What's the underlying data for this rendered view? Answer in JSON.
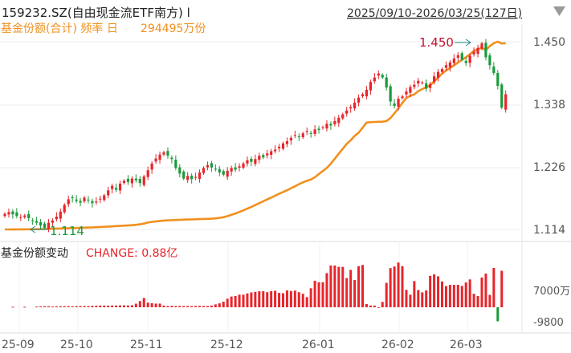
{
  "header": {
    "title": "159232.SZ(自由现金流ETF南方) l",
    "date_range": "2025/09/10-2026/03/25(127日)",
    "subtitle_label": "基金份额(合计) 频率 日",
    "subtitle_value": "294495万份",
    "dropdown_icon": "triangle-down-icon"
  },
  "lower_panel": {
    "label": "基金份额变动",
    "change_label": "CHANGE: 0.88亿",
    "tick_labels": [
      "7000万",
      "-9800"
    ]
  },
  "colors": {
    "up": "#e8252b",
    "down": "#1a9a3a",
    "line": "#f0901e",
    "title": "#222222",
    "subtitle": "#f0901e",
    "annotation_high": "#c8102e",
    "annotation_low": "#1a9a3a",
    "axis_text": "#555555",
    "grid": "#eeeeee"
  },
  "chart_data": [
    {
      "type": "candlestick",
      "title": "159232.SZ(自由现金流ETF南方)",
      "y_ticks": [
        "1.450",
        "1.338",
        "1.226",
        "1.114"
      ],
      "ylim": [
        1.114,
        1.45
      ],
      "x_ticks": [
        "25-09",
        "25-10",
        "25-11",
        "25-12",
        "26-01",
        "26-02",
        "26-03"
      ],
      "annotations": [
        {
          "label": "1.450",
          "kind": "high"
        },
        {
          "label": "1.114",
          "kind": "low"
        }
      ],
      "close": [
        1.142,
        1.145,
        1.141,
        1.138,
        1.136,
        1.139,
        1.134,
        1.13,
        1.126,
        1.121,
        1.117,
        1.126,
        1.13,
        1.137,
        1.146,
        1.158,
        1.168,
        1.17,
        1.165,
        1.162,
        1.171,
        1.166,
        1.161,
        1.164,
        1.169,
        1.175,
        1.184,
        1.192,
        1.185,
        1.196,
        1.201,
        1.199,
        1.205,
        1.202,
        1.197,
        1.209,
        1.22,
        1.232,
        1.241,
        1.248,
        1.252,
        1.246,
        1.24,
        1.224,
        1.214,
        1.205,
        1.21,
        1.204,
        1.208,
        1.216,
        1.224,
        1.229,
        1.225,
        1.222,
        1.216,
        1.212,
        1.219,
        1.224,
        1.221,
        1.227,
        1.232,
        1.238,
        1.235,
        1.24,
        1.246,
        1.243,
        1.25,
        1.254,
        1.257,
        1.262,
        1.268,
        1.272,
        1.278,
        1.283,
        1.279,
        1.286,
        1.29,
        1.286,
        1.293,
        1.292,
        1.297,
        1.303,
        1.3,
        1.308,
        1.314,
        1.32,
        1.327,
        1.333,
        1.341,
        1.35,
        1.356,
        1.364,
        1.378,
        1.386,
        1.393,
        1.386,
        1.368,
        1.343,
        1.335,
        1.348,
        1.352,
        1.361,
        1.369,
        1.373,
        1.38,
        1.377,
        1.366,
        1.374,
        1.388,
        1.396,
        1.401,
        1.408,
        1.413,
        1.42,
        1.426,
        1.418,
        1.412,
        1.425,
        1.432,
        1.439,
        1.447,
        1.422,
        1.408,
        1.394,
        1.371,
        1.332,
        1.356
      ],
      "share_line": {
        "name": "基金份额(合计)",
        "values_wanfen": [
          20600,
          20600,
          20700,
          20700,
          20700,
          20800,
          20800,
          20800,
          20900,
          21100,
          21300,
          21500,
          21600,
          21800,
          22000,
          22200,
          22400,
          22600,
          22800,
          23000,
          23200,
          23400,
          23600,
          23900,
          24200,
          24500,
          24800,
          25100,
          25500,
          25800,
          26200,
          26600,
          26900,
          27400,
          28100,
          29200,
          30900,
          31700,
          32400,
          33100,
          33700,
          34000,
          34200,
          34500,
          34700,
          35000,
          35200,
          35400,
          35600,
          35800,
          36000,
          36200,
          36400,
          36900,
          37600,
          38600,
          40200,
          42100,
          44100,
          46300,
          48700,
          51100,
          53700,
          56400,
          59200,
          62000,
          64800,
          67400,
          70300,
          73200,
          75700,
          78200,
          81200,
          84100,
          87100,
          89800,
          92200,
          94000,
          97400,
          102100,
          106600,
          111100,
          117200,
          124600,
          132000,
          139200,
          146400,
          151600,
          158100,
          162900,
          170200,
          177700,
          178300,
          178600,
          178900,
          179000,
          180000,
          184300,
          191300,
          198600,
          206600,
          213900,
          217000,
          219200,
          223900,
          227000,
          229600,
          232600,
          238200,
          244000,
          249600,
          254200,
          258000,
          262000,
          266000,
          270000,
          273800,
          278200,
          283200,
          285600,
          287600,
          284200,
          290200,
          294500,
          296600,
          294000,
          294495
        ]
      },
      "share_change": {
        "name": "基金份额变动",
        "values_wanfen": [
          0,
          0,
          900,
          0,
          0,
          900,
          0,
          0,
          1300,
          1700,
          1900,
          1800,
          1400,
          1700,
          1800,
          1900,
          2000,
          1700,
          2000,
          2100,
          2100,
          2100,
          2600,
          2700,
          3100,
          3100,
          2900,
          3200,
          3100,
          3400,
          3500,
          3200,
          3600,
          6400,
          11000,
          16600,
          8200,
          7200,
          6500,
          6500,
          3000,
          2300,
          2600,
          2200,
          2400,
          2200,
          2300,
          2100,
          2300,
          2400,
          2200,
          2200,
          3000,
          5100,
          7000,
          9800,
          15300,
          19100,
          20000,
          22400,
          22400,
          24600,
          26400,
          27400,
          28500,
          28700,
          26800,
          28800,
          29400,
          25600,
          25000,
          30000,
          29000,
          29600,
          26800,
          24000,
          18000,
          33800,
          47200,
          44500,
          44600,
          60800,
          74400,
          74400,
          72000,
          72000,
          52000,
          66500,
          48400,
          73200,
          75400,
          5800,
          3200,
          3000,
          100,
          9500,
          43500,
          69700,
          72600,
          79700,
          73200,
          31000,
          22400,
          46700,
          30600,
          26500,
          30000,
          56000,
          58600,
          55100,
          46000,
          37800,
          39900,
          40000,
          40000,
          38000,
          44200,
          49600,
          24000,
          20000,
          53000,
          60000,
          22000,
          70000,
          -25000,
          65000
        ]
      }
    }
  ]
}
